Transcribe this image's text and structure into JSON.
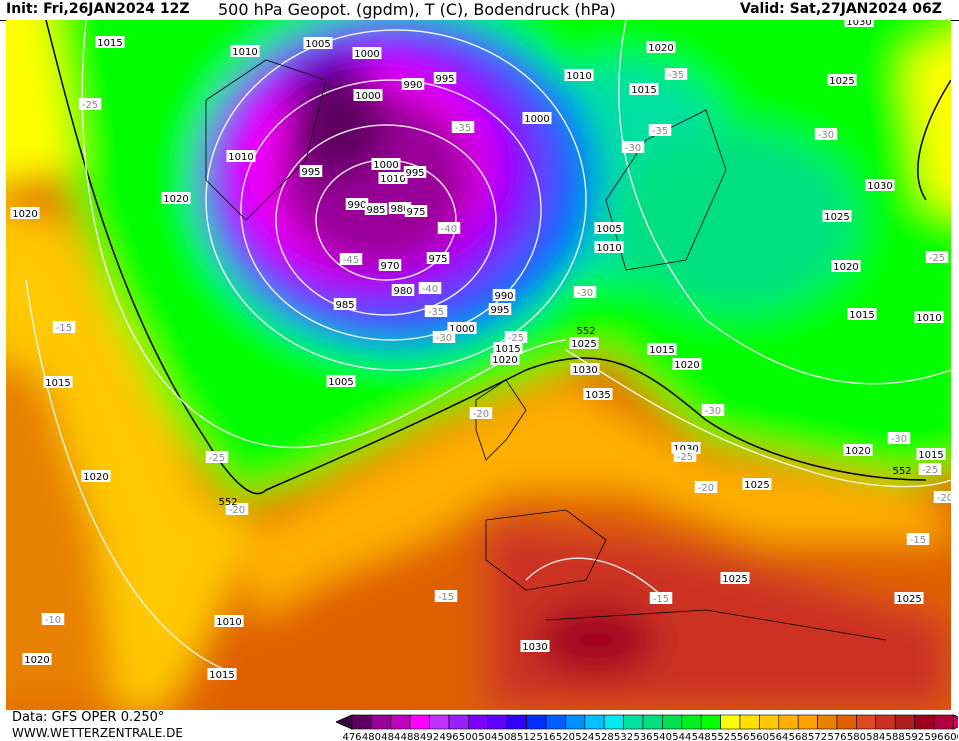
{
  "header": {
    "init": "Init: Fri,26JAN2024 12Z",
    "title": "500 hPa Geopot. (gpdm), T (C), Bodendruck (hPa)",
    "valid": "Valid: Sat,27JAN2024 06Z"
  },
  "footer": {
    "data_source": "Data: GFS OPER 0.250°",
    "website": "WWW.WETTERZENTRALE.DE"
  },
  "legend": {
    "labels": [
      "476",
      "480",
      "484",
      "488",
      "492",
      "496",
      "500",
      "504",
      "508",
      "512",
      "516",
      "520",
      "524",
      "528",
      "532",
      "536",
      "540",
      "544",
      "548",
      "552",
      "556",
      "560",
      "564",
      "568",
      "572",
      "576",
      "580",
      "584",
      "588",
      "592",
      "596",
      "600"
    ],
    "colors": [
      "#3a0040",
      "#5e0060",
      "#990099",
      "#c000c0",
      "#ff00ff",
      "#c030ff",
      "#9b1fff",
      "#8000ff",
      "#6000ff",
      "#3000ff",
      "#0030ff",
      "#0060ff",
      "#0090ff",
      "#00c0ff",
      "#00e8f0",
      "#00e0a0",
      "#00e080",
      "#00e050",
      "#00f020",
      "#00ff00",
      "#ffff00",
      "#ffe000",
      "#ffc800",
      "#ffb000",
      "#ffa000",
      "#e88000",
      "#e06000",
      "#e04820",
      "#cc3020",
      "#b02020",
      "#a00020",
      "#b0003c",
      "#d0006a"
    ]
  },
  "isobars": [
    "1015",
    "1010",
    "1005",
    "1000",
    "990",
    "995",
    "1000",
    "1010",
    "995",
    "1000",
    "1010",
    "995",
    "990",
    "985",
    "980",
    "975",
    "970",
    "975",
    "980",
    "985",
    "990",
    "995",
    "1000",
    "1020",
    "1020",
    "1015",
    "1005",
    "1020",
    "1010",
    "1015",
    "1020",
    "1020",
    "1010",
    "1015",
    "1000",
    "1025",
    "1030",
    "1025",
    "1020",
    "1005",
    "1010",
    "1015",
    "1010",
    "1015",
    "1020",
    "1025",
    "1015",
    "1020",
    "1030",
    "1035",
    "1030",
    "1025",
    "1020",
    "1015",
    "1025",
    "1025",
    "1030",
    "1030"
  ],
  "temperatures": [
    "-25",
    "-35",
    "-35",
    "-35",
    "-30",
    "-30",
    "-40",
    "-45",
    "-40",
    "-35",
    "-30",
    "-25",
    "-30",
    "-15",
    "-20",
    "-30",
    "-30",
    "-25",
    "-20",
    "-25",
    "-20",
    "-25",
    "-25",
    "-20",
    "-15",
    "-15",
    "-15",
    "-10"
  ],
  "geopotential_labels": [
    "552",
    "552",
    "552"
  ]
}
